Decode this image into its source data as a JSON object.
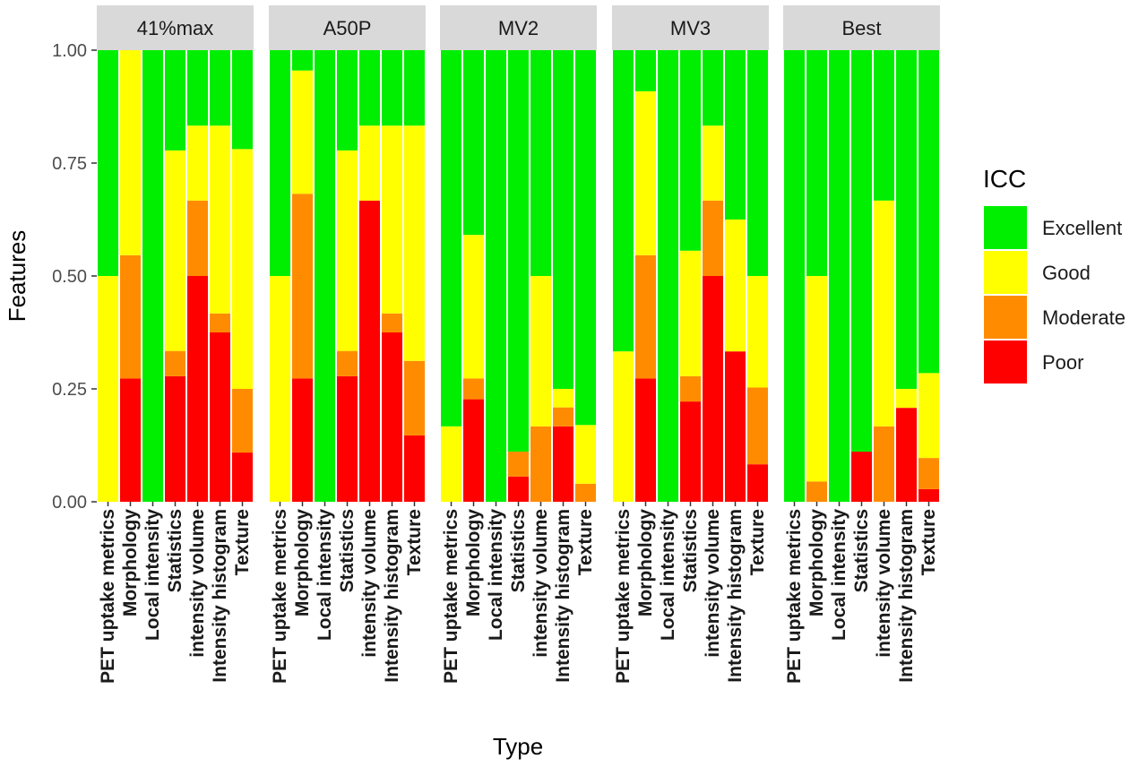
{
  "chart_data": {
    "type": "bar",
    "stacked": true,
    "xlabel": "Type",
    "ylabel": "Features",
    "ylim": [
      0,
      1
    ],
    "yticks": [
      "0.00",
      "0.25",
      "0.50",
      "0.75",
      "1.00"
    ],
    "categories": [
      "PET uptake metrics",
      "Morphology",
      "Local intensity",
      "Statistics",
      "intensity volume",
      "Intensity histogram",
      "Texture"
    ],
    "legend": {
      "title": "ICC",
      "position": "right",
      "entries": [
        "Excellent",
        "Good",
        "Moderate",
        "Poor"
      ]
    },
    "colors": {
      "Excellent": "#00ee00",
      "Good": "#ffff00",
      "Moderate": "#ff8c00",
      "Poor": "#ff0000"
    },
    "panels": [
      {
        "name": "41%max",
        "series": [
          {
            "name": "Poor",
            "values": [
              0,
              0.273,
              0,
              0.278,
              0.5,
              0.375,
              0.109
            ]
          },
          {
            "name": "Moderate",
            "values": [
              0,
              0.273,
              0,
              0.056,
              0.167,
              0.042,
              0.141
            ]
          },
          {
            "name": "Good",
            "values": [
              0.5,
              0.454,
              0,
              0.444,
              0.166,
              0.416,
              0.531
            ]
          },
          {
            "name": "Excellent",
            "values": [
              0.5,
              0,
              1,
              0.222,
              0.167,
              0.167,
              0.219
            ]
          }
        ]
      },
      {
        "name": "A50P",
        "series": [
          {
            "name": "Poor",
            "values": [
              0,
              0.273,
              0,
              0.278,
              0.667,
              0.375,
              0.147
            ]
          },
          {
            "name": "Moderate",
            "values": [
              0,
              0.409,
              0,
              0.056,
              0,
              0.042,
              0.165
            ]
          },
          {
            "name": "Good",
            "values": [
              0.5,
              0.273,
              0,
              0.444,
              0.166,
              0.416,
              0.521
            ]
          },
          {
            "name": "Excellent",
            "values": [
              0.5,
              0.045,
              1,
              0.222,
              0.167,
              0.167,
              0.167
            ]
          }
        ]
      },
      {
        "name": "MV2",
        "series": [
          {
            "name": "Poor",
            "values": [
              0,
              0.227,
              0,
              0.056,
              0,
              0.167,
              0
            ]
          },
          {
            "name": "Moderate",
            "values": [
              0,
              0.046,
              0,
              0.055,
              0.167,
              0.042,
              0.04
            ]
          },
          {
            "name": "Good",
            "values": [
              0.167,
              0.318,
              0,
              0,
              0.333,
              0.041,
              0.13
            ]
          },
          {
            "name": "Excellent",
            "values": [
              0.833,
              0.409,
              1,
              0.889,
              0.5,
              0.75,
              0.83
            ]
          }
        ]
      },
      {
        "name": "MV3",
        "series": [
          {
            "name": "Poor",
            "values": [
              0,
              0.273,
              0,
              0.222,
              0.5,
              0.333,
              0.083
            ]
          },
          {
            "name": "Moderate",
            "values": [
              0,
              0.273,
              0,
              0.056,
              0.167,
              0,
              0.17
            ]
          },
          {
            "name": "Good",
            "values": [
              0.333,
              0.363,
              0,
              0.278,
              0.166,
              0.292,
              0.247
            ]
          },
          {
            "name": "Excellent",
            "values": [
              0.667,
              0.091,
              1,
              0.444,
              0.167,
              0.375,
              0.5
            ]
          }
        ]
      },
      {
        "name": "Best",
        "series": [
          {
            "name": "Poor",
            "values": [
              0,
              0,
              0,
              0.111,
              0,
              0.208,
              0.028
            ]
          },
          {
            "name": "Moderate",
            "values": [
              0,
              0.045,
              0,
              0,
              0.167,
              0,
              0.069
            ]
          },
          {
            "name": "Good",
            "values": [
              0,
              0.455,
              0,
              0,
              0.5,
              0.042,
              0.188
            ]
          },
          {
            "name": "Excellent",
            "values": [
              1,
              0.5,
              1,
              0.889,
              0.333,
              0.75,
              0.715
            ]
          }
        ]
      }
    ]
  }
}
